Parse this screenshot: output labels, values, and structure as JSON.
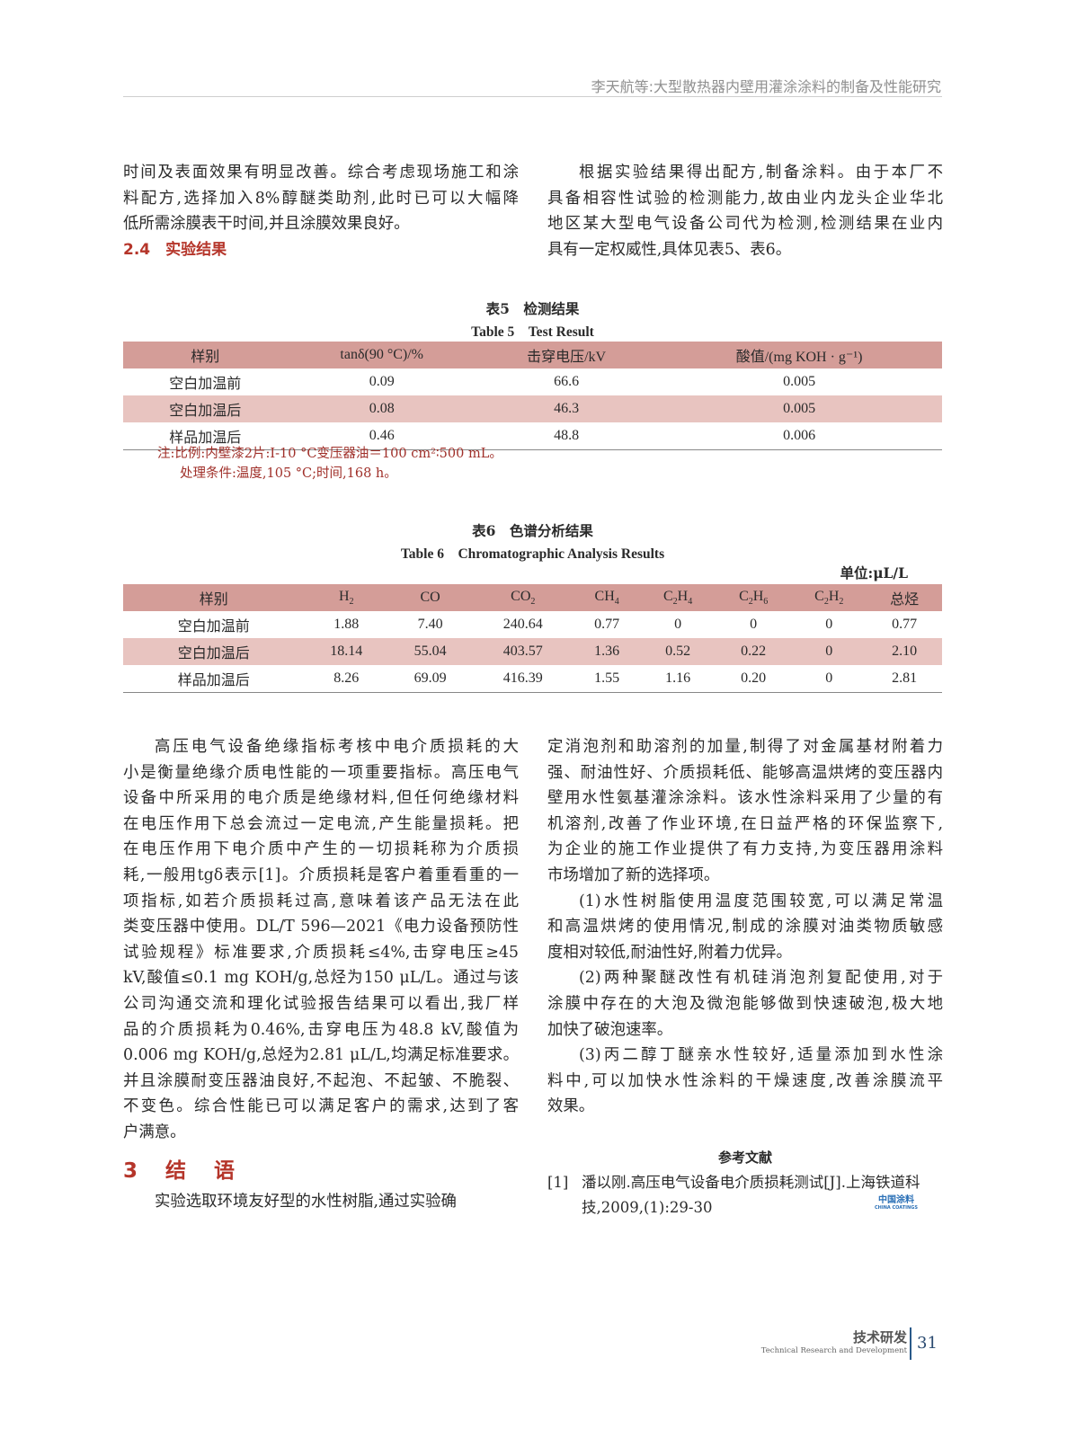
{
  "header": {
    "running_title": "李天航等:大型散热器内壁用灌涂涂料的制备及性能研究"
  },
  "top_left": {
    "lines": [
      "时间及表面效果有明显改善。综合考虑现场施工和涂",
      "料配方,选择加入8%醇醚类助剂,此时已可以大幅降",
      "低所需涂膜表干时间,并且涂膜效果良好。"
    ],
    "heading": "2.4　实验结果"
  },
  "top_right": {
    "lines": [
      "根据实验结果得出配方,制备涂料。由于本厂不",
      "具备相容性试验的检测能力,故由业内龙头企业华北",
      "地区某大型电气设备公司代为检测,检测结果在业内",
      "具有一定权威性,具体见表5、表6。"
    ]
  },
  "table5": {
    "caption_zh": "表5　检测结果",
    "caption_en": "Table 5　Test Result",
    "headers": [
      "样别",
      "tanδ(90 °C)/%",
      "击穿电压/kV",
      "酸值/(mg KOH · g⁻¹)"
    ],
    "rows": [
      [
        "空白加温前",
        "0.09",
        "66.6",
        "0.005"
      ],
      [
        "空白加温后",
        "0.08",
        "46.3",
        "0.005"
      ],
      [
        "样品加温后",
        "0.46",
        "48.8",
        "0.006"
      ]
    ],
    "notes": [
      "注:比例:内壁漆2片:I-10 °C变压器油＝100 cm²∶500 mL。",
      "处理条件:温度,105 °C;时间,168 h。"
    ]
  },
  "table6": {
    "caption_zh": "表6　色谱分析结果",
    "caption_en": "Table 6　Chromatographic Analysis Results",
    "unit": "单位:μL/L",
    "headers": [
      "样别",
      "H2",
      "CO",
      "CO2",
      "CH4",
      "C2H4",
      "C2H6",
      "C2H2",
      "总烃"
    ],
    "rows": [
      [
        "空白加温前",
        "1.88",
        "7.40",
        "240.64",
        "0.77",
        "0",
        "0",
        "0",
        "0.77"
      ],
      [
        "空白加温后",
        "18.14",
        "55.04",
        "403.57",
        "1.36",
        "0.52",
        "0.22",
        "0",
        "2.10"
      ],
      [
        "样品加温后",
        "8.26",
        "69.09",
        "416.39",
        "1.55",
        "1.16",
        "0.20",
        "0",
        "2.81"
      ]
    ]
  },
  "bottom_left": {
    "lines": [
      "高压电气设备绝缘指标考核中电介质损耗的大",
      "小是衡量绝缘介质电性能的一项重要指标。高压电气",
      "设备中所采用的电介质是绝缘材料,但任何绝缘材料",
      "在电压作用下总会流过一定电流,产生能量损耗。把",
      "在电压作用下电介质中产生的一切损耗称为介质损",
      "耗,一般用tgδ表示[1]。介质损耗是客户着重看重的一",
      "项指标,如若介质损耗过高,意味着该产品无法在此",
      "类变压器中使用。DL/T 596—2021《电力设备预防性",
      "试验规程》标准要求,介质损耗≤4%,击穿电压≥45",
      "kV,酸值≤0.1 mg KOH/g,总烃为150 μL/L。通过与该",
      "公司沟通交流和理化试验报告结果可以看出,我厂样",
      "品的介质损耗为0.46%,击穿电压为48.8 kV,酸值为",
      "0.006 mg KOH/g,总烃为2.81 μL/L,均满足标准要求。",
      "并且涂膜耐变压器油良好,不起泡、不起皱、不脆裂、",
      "不变色。综合性能已可以满足客户的需求,达到了客",
      "户满意。"
    ],
    "heading": "3　结　语",
    "after": [
      "实验选取环境友好型的水性树脂,通过实验确"
    ]
  },
  "bottom_right": {
    "lines": [
      "定消泡剂和助溶剂的加量,制得了对金属基材附着力",
      "强、耐油性好、介质损耗低、能够高温烘烤的变压器内",
      "壁用水性氨基灌涂涂料。该水性涂料采用了少量的有",
      "机溶剂,改善了作业环境,在日益严格的环保监察下,",
      "为企业的施工作业提供了有力支持,为变压器用涂料",
      "市场增加了新的选择项。",
      "(1)水性树脂使用温度范围较宽,可以满足常温",
      "和高温烘烤的使用情况,制成的涂膜对油类物质敏感",
      "度相对较低,耐油性好,附着力优异。",
      "(2)两种聚醚改性有机硅消泡剂复配使用,对于",
      "涂膜中存在的大泡及微泡能够做到快速破泡,极大地",
      "加快了破泡速率。",
      "(3)丙二醇丁醚亲水性较好,适量添加到水性涂",
      "料中,可以加快水性涂料的干燥速度,改善涂膜流平",
      "效果。"
    ],
    "references_title": "参考文献",
    "ref1_num": "[1]",
    "ref1_line1": "潘以刚.高压电气设备电介质损耗测试[J].上海铁道科",
    "ref1_line2": "技,2009,(1):29-30"
  },
  "logo": {
    "zh": "中国涂料",
    "en": "CHINA COATINGS"
  },
  "footer": {
    "section_zh": "技术研发",
    "section_en": "Technical Research and Development",
    "page": "31"
  },
  "colors": {
    "accent_red": "#b5352a",
    "table_header": "#d49d98",
    "table_alt_row": "#e8c4c0"
  }
}
